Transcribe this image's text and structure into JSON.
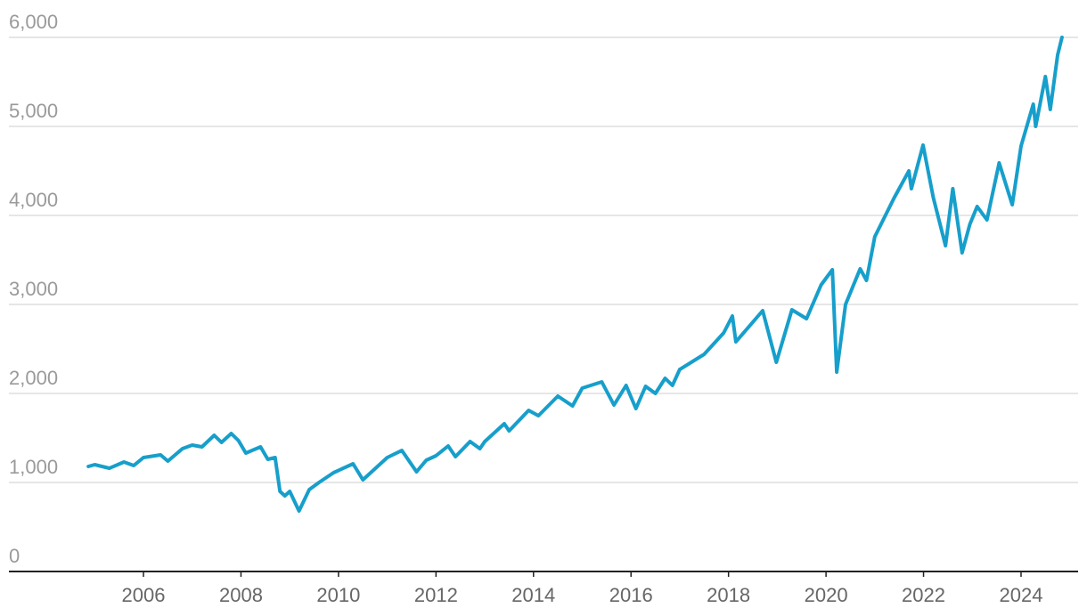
{
  "chart_data": {
    "type": "line",
    "x": [
      2004.87,
      2005.0,
      2005.3,
      2005.6,
      2005.8,
      2006.0,
      2006.35,
      2006.5,
      2006.8,
      2007.0,
      2007.2,
      2007.45,
      2007.6,
      2007.8,
      2007.95,
      2008.1,
      2008.4,
      2008.55,
      2008.7,
      2008.8,
      2008.9,
      2009.0,
      2009.19,
      2009.4,
      2009.6,
      2009.9,
      2010.3,
      2010.5,
      2010.8,
      2011.0,
      2011.3,
      2011.6,
      2011.8,
      2012.0,
      2012.25,
      2012.4,
      2012.7,
      2012.9,
      2013.0,
      2013.4,
      2013.5,
      2013.9,
      2014.1,
      2014.5,
      2014.8,
      2015.0,
      2015.4,
      2015.65,
      2015.9,
      2016.1,
      2016.3,
      2016.5,
      2016.7,
      2016.85,
      2017.0,
      2017.5,
      2017.9,
      2018.08,
      2018.15,
      2018.7,
      2018.98,
      2019.3,
      2019.6,
      2019.9,
      2020.13,
      2020.22,
      2020.4,
      2020.7,
      2020.83,
      2021.0,
      2021.4,
      2021.7,
      2021.75,
      2021.99,
      2022.2,
      2022.45,
      2022.6,
      2022.79,
      2022.95,
      2023.1,
      2023.3,
      2023.55,
      2023.82,
      2024.0,
      2024.25,
      2024.3,
      2024.5,
      2024.6,
      2024.75,
      2024.84
    ],
    "series": [
      {
        "color": "#179fcb",
        "values": [
          1180,
          1200,
          1160,
          1230,
          1190,
          1280,
          1310,
          1240,
          1380,
          1420,
          1400,
          1530,
          1450,
          1550,
          1470,
          1330,
          1400,
          1260,
          1280,
          900,
          850,
          900,
          680,
          920,
          1000,
          1110,
          1210,
          1030,
          1180,
          1280,
          1360,
          1120,
          1250,
          1300,
          1410,
          1290,
          1460,
          1380,
          1460,
          1660,
          1580,
          1810,
          1750,
          1970,
          1860,
          2060,
          2130,
          1870,
          2090,
          1830,
          2080,
          2000,
          2170,
          2090,
          2270,
          2440,
          2680,
          2870,
          2580,
          2930,
          2350,
          2940,
          2840,
          3220,
          3390,
          2240,
          3000,
          3400,
          3270,
          3760,
          4200,
          4500,
          4300,
          4790,
          4200,
          3660,
          4300,
          3580,
          3900,
          4100,
          3950,
          4590,
          4120,
          4780,
          5250,
          5000,
          5560,
          5190,
          5800,
          6000
        ]
      }
    ],
    "xlim": [
      2003.24,
      2025.17
    ],
    "xticks": [
      2006,
      2008,
      2010,
      2012,
      2014,
      2016,
      2018,
      2020,
      2022,
      2024
    ],
    "ylim": [
      0,
      6000
    ],
    "yticks": [
      0,
      {
        "value": 1000,
        "label": "1,000"
      },
      {
        "value": 2000,
        "label": "2,000"
      },
      {
        "value": 3000,
        "label": "3,000"
      },
      {
        "value": 4000,
        "label": "4,000"
      },
      {
        "value": 5000,
        "label": "5,000"
      },
      {
        "value": 6000,
        "label": "6,000"
      }
    ],
    "grid": true
  }
}
